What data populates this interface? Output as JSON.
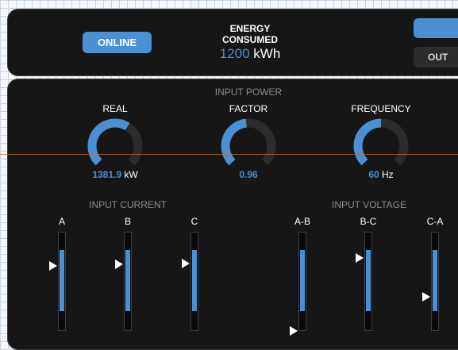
{
  "header": {
    "status_button": "ONLINE",
    "energy_title_line1": "ENERGY",
    "energy_title_line2": "CONSUMED",
    "energy_value": "1200",
    "energy_unit": "kWh",
    "top_right_button": "",
    "output_button": "OUT"
  },
  "input_power": {
    "title": "INPUT POWER",
    "gauges": [
      {
        "label": "REAL",
        "value": "1381.9",
        "unit": "kW",
        "fraction": 0.62
      },
      {
        "label": "FACTOR",
        "value": "0.96",
        "unit": "",
        "fraction": 0.48
      },
      {
        "label": "FREQUENCY",
        "value": "60",
        "unit": "Hz",
        "fraction": 0.5
      }
    ]
  },
  "input_current": {
    "title": "INPUT CURRENT",
    "bars": [
      {
        "label": "A",
        "level": 0.81,
        "marker": 0.81
      },
      {
        "label": "B",
        "level": 0.81,
        "marker": 0.83
      },
      {
        "label": "C",
        "level": 0.81,
        "marker": 0.84
      }
    ]
  },
  "input_voltage": {
    "title": "INPUT VOLTAGE",
    "bars": [
      {
        "label": "A-B",
        "level": 0.81,
        "marker": 0.0
      },
      {
        "label": "B-C",
        "level": 0.81,
        "marker": 0.91
      },
      {
        "label": "C-A",
        "level": 0.81,
        "marker": 0.43
      }
    ]
  },
  "colors": {
    "accent": "#4a90d2",
    "panel": "#161616",
    "track": "#2c2c2c"
  }
}
